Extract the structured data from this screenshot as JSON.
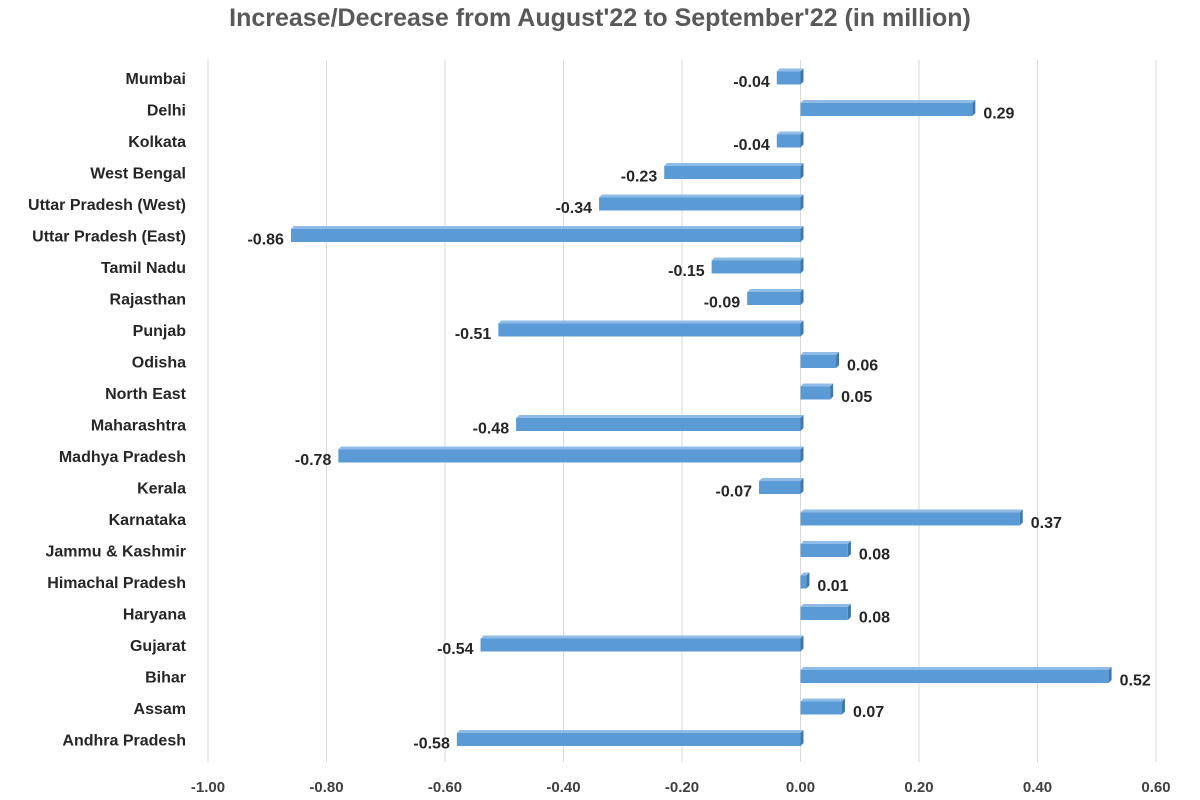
{
  "chart_data": {
    "type": "bar",
    "orientation": "horizontal",
    "title": "Increase/Decrease from August'22 to September'22 (in million)",
    "xlabel": "",
    "ylabel": "",
    "xlim": [
      -1.0,
      0.6
    ],
    "x_ticks": [
      "-1.00",
      "-0.80",
      "-0.60",
      "-0.40",
      "-0.20",
      "0.00",
      "0.20",
      "0.40",
      "0.60"
    ],
    "grid": true,
    "bar_color": "#5b9bd5",
    "categories": [
      "Mumbai",
      "Delhi",
      "Kolkata",
      "West Bengal",
      "Uttar Pradesh (West)",
      "Uttar Pradesh (East)",
      "Tamil Nadu",
      "Rajasthan",
      "Punjab",
      "Odisha",
      "North East",
      "Maharashtra",
      "Madhya Pradesh",
      "Kerala",
      "Karnataka",
      "Jammu & Kashmir",
      "Himachal Pradesh",
      "Haryana",
      "Gujarat",
      "Bihar",
      "Assam",
      "Andhra Pradesh"
    ],
    "values": [
      -0.04,
      0.29,
      -0.04,
      -0.23,
      -0.34,
      -0.86,
      -0.15,
      -0.09,
      -0.51,
      0.06,
      0.05,
      -0.48,
      -0.78,
      -0.07,
      0.37,
      0.08,
      0.01,
      0.08,
      -0.54,
      0.52,
      0.07,
      -0.58
    ],
    "value_labels": [
      "-0.04",
      "0.29",
      "-0.04",
      "-0.23",
      "-0.34",
      "-0.86",
      "-0.15",
      "-0.09",
      "-0.51",
      "0.06",
      "0.05",
      "-0.48",
      "-0.78",
      "-0.07",
      "0.37",
      "0.08",
      "0.01",
      "0.08",
      "-0.54",
      "0.52",
      "0.07",
      "-0.58"
    ]
  }
}
